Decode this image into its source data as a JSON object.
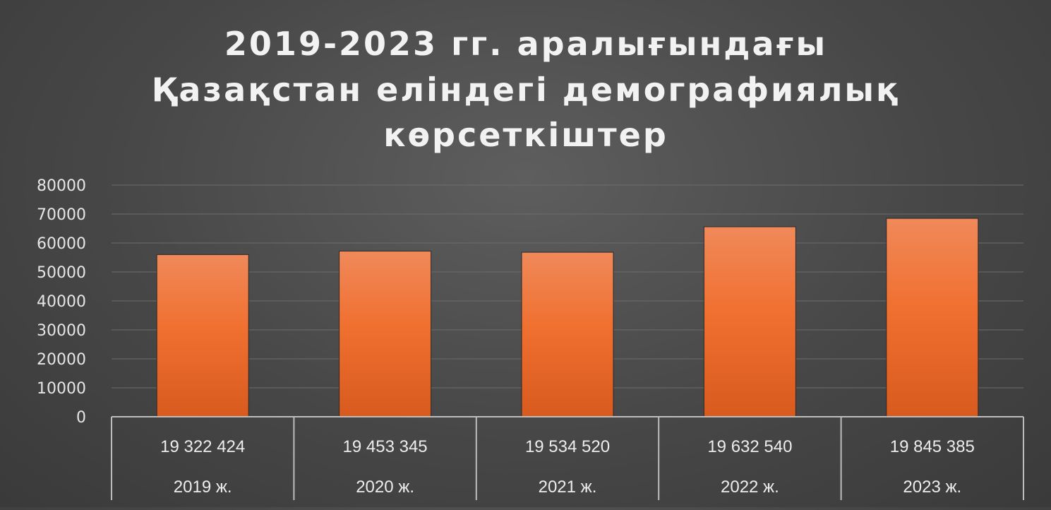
{
  "chart_data": {
    "type": "bar",
    "title_lines": [
      "2019-2023 гг. аралығындағы",
      "Қазақстан еліндегі демографиялық",
      "көрсеткіштер"
    ],
    "categories": [
      "2019 ж.",
      "2020 ж.",
      "2021 ж.",
      "2022 ж.",
      "2023 ж."
    ],
    "category_values": [
      "19 322 424",
      "19 453 345",
      "19 534 520",
      "19 632 540",
      "19 845 385"
    ],
    "values": [
      56000,
      57200,
      56800,
      65600,
      68500
    ],
    "ylim": [
      0,
      80000
    ],
    "yticks": [
      "0",
      "10000",
      "20000",
      "30000",
      "40000",
      "50000",
      "60000",
      "70000",
      "80000"
    ],
    "grid": true,
    "bar_color": "#f07030"
  }
}
